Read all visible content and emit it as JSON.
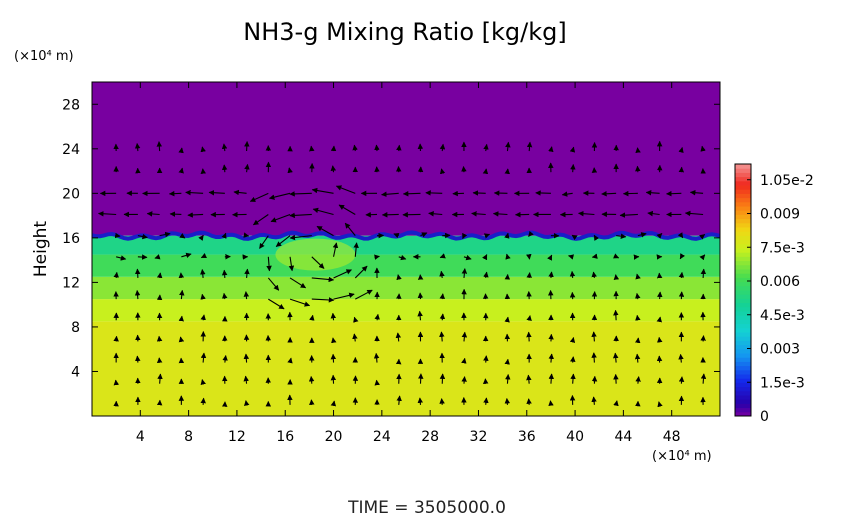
{
  "chart_data": {
    "type": "heatmap",
    "title": "NH3-g Mixing Ratio [kg/kg]",
    "xlabel": "",
    "ylabel": "Height",
    "x_unit": "(×10⁴ m)",
    "y_unit": "(×10⁴ m)",
    "xlim": [
      0,
      52
    ],
    "ylim": [
      0,
      30
    ],
    "x_ticks": [
      "4",
      "8",
      "12",
      "16",
      "20",
      "24",
      "28",
      "32",
      "36",
      "40",
      "44",
      "48"
    ],
    "y_ticks": [
      "4",
      "8",
      "12",
      "16",
      "20",
      "24",
      "28"
    ],
    "colorbar": {
      "range": [
        0,
        0.0112
      ],
      "labels": [
        "0",
        "1.5e-3",
        "0.003",
        "4.5e-3",
        "0.006",
        "7.5e-3",
        "0.009",
        "1.05e-2"
      ],
      "label_values": [
        0,
        0.0015,
        0.003,
        0.0045,
        0.006,
        0.0075,
        0.009,
        0.0105
      ]
    },
    "layers": [
      {
        "height_range": [
          0,
          8.5
        ],
        "value": 0.0078
      },
      {
        "height_range": [
          8.5,
          10.5
        ],
        "value": 0.0074
      },
      {
        "height_range": [
          10.5,
          12.5
        ],
        "value": 0.0068
      },
      {
        "height_range": [
          12.5,
          14.5
        ],
        "value": 0.006
      },
      {
        "height_range": [
          14.5,
          16.2
        ],
        "value": 0.0052
      },
      {
        "height_range": [
          16.2,
          30
        ],
        "value": 0
      }
    ],
    "overlay": "wind velocity vectors",
    "grid": false,
    "legend": "right colorbar",
    "time_label": "TIME = 3505000.0"
  }
}
